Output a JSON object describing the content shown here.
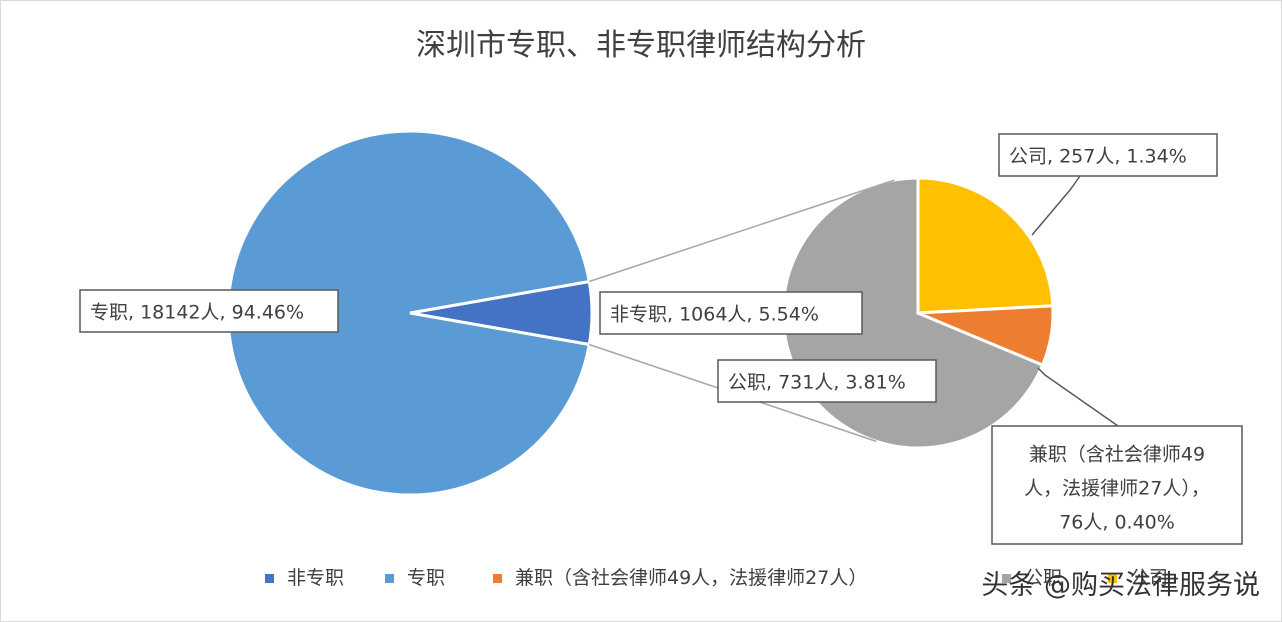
{
  "chart_data": {
    "type": "pie",
    "title": "深圳市专职、非专职律师结构分析",
    "main_slices": [
      {
        "key": "fz",
        "name": "非专职",
        "label": "非专职, 1064人, 5.54%",
        "value": 1064,
        "percent": 5.54,
        "color": "#4472c4"
      },
      {
        "key": "zz",
        "name": "专职",
        "label": "专职, 18142人, 94.46%",
        "value": 18142,
        "percent": 94.46,
        "color": "#5b9bd5"
      }
    ],
    "sub_slices": [
      {
        "key": "gz",
        "name": "公职",
        "label": "公职, 731人, 3.81%",
        "value": 731,
        "percent": 3.81,
        "color": "#a5a5a5"
      },
      {
        "key": "gs",
        "name": "公司",
        "label": "公司, 257人, 1.34%",
        "value": 257,
        "percent": 1.34,
        "color": "#ffc000"
      },
      {
        "key": "jz",
        "name": "兼职（含社会律师49人，法援律师27人）",
        "label_lines": [
          "兼职（含社会律师49",
          "人，法援律师27人），",
          "76人, 0.40%"
        ],
        "value": 76,
        "percent": 0.4,
        "color": "#ed7d31"
      }
    ],
    "legend": [
      {
        "text": "非专职",
        "color": "#4472c4"
      },
      {
        "text": "专职",
        "color": "#5b9bd5"
      },
      {
        "text": "兼职（含社会律师49人，法援律师27人）",
        "color": "#ed7d31"
      },
      {
        "text": "公职",
        "color": "#a5a5a5"
      },
      {
        "text": "公司",
        "color": "#ffc000"
      }
    ],
    "legend_position": "bottom"
  },
  "watermark": "头条 @购买法律服务说"
}
